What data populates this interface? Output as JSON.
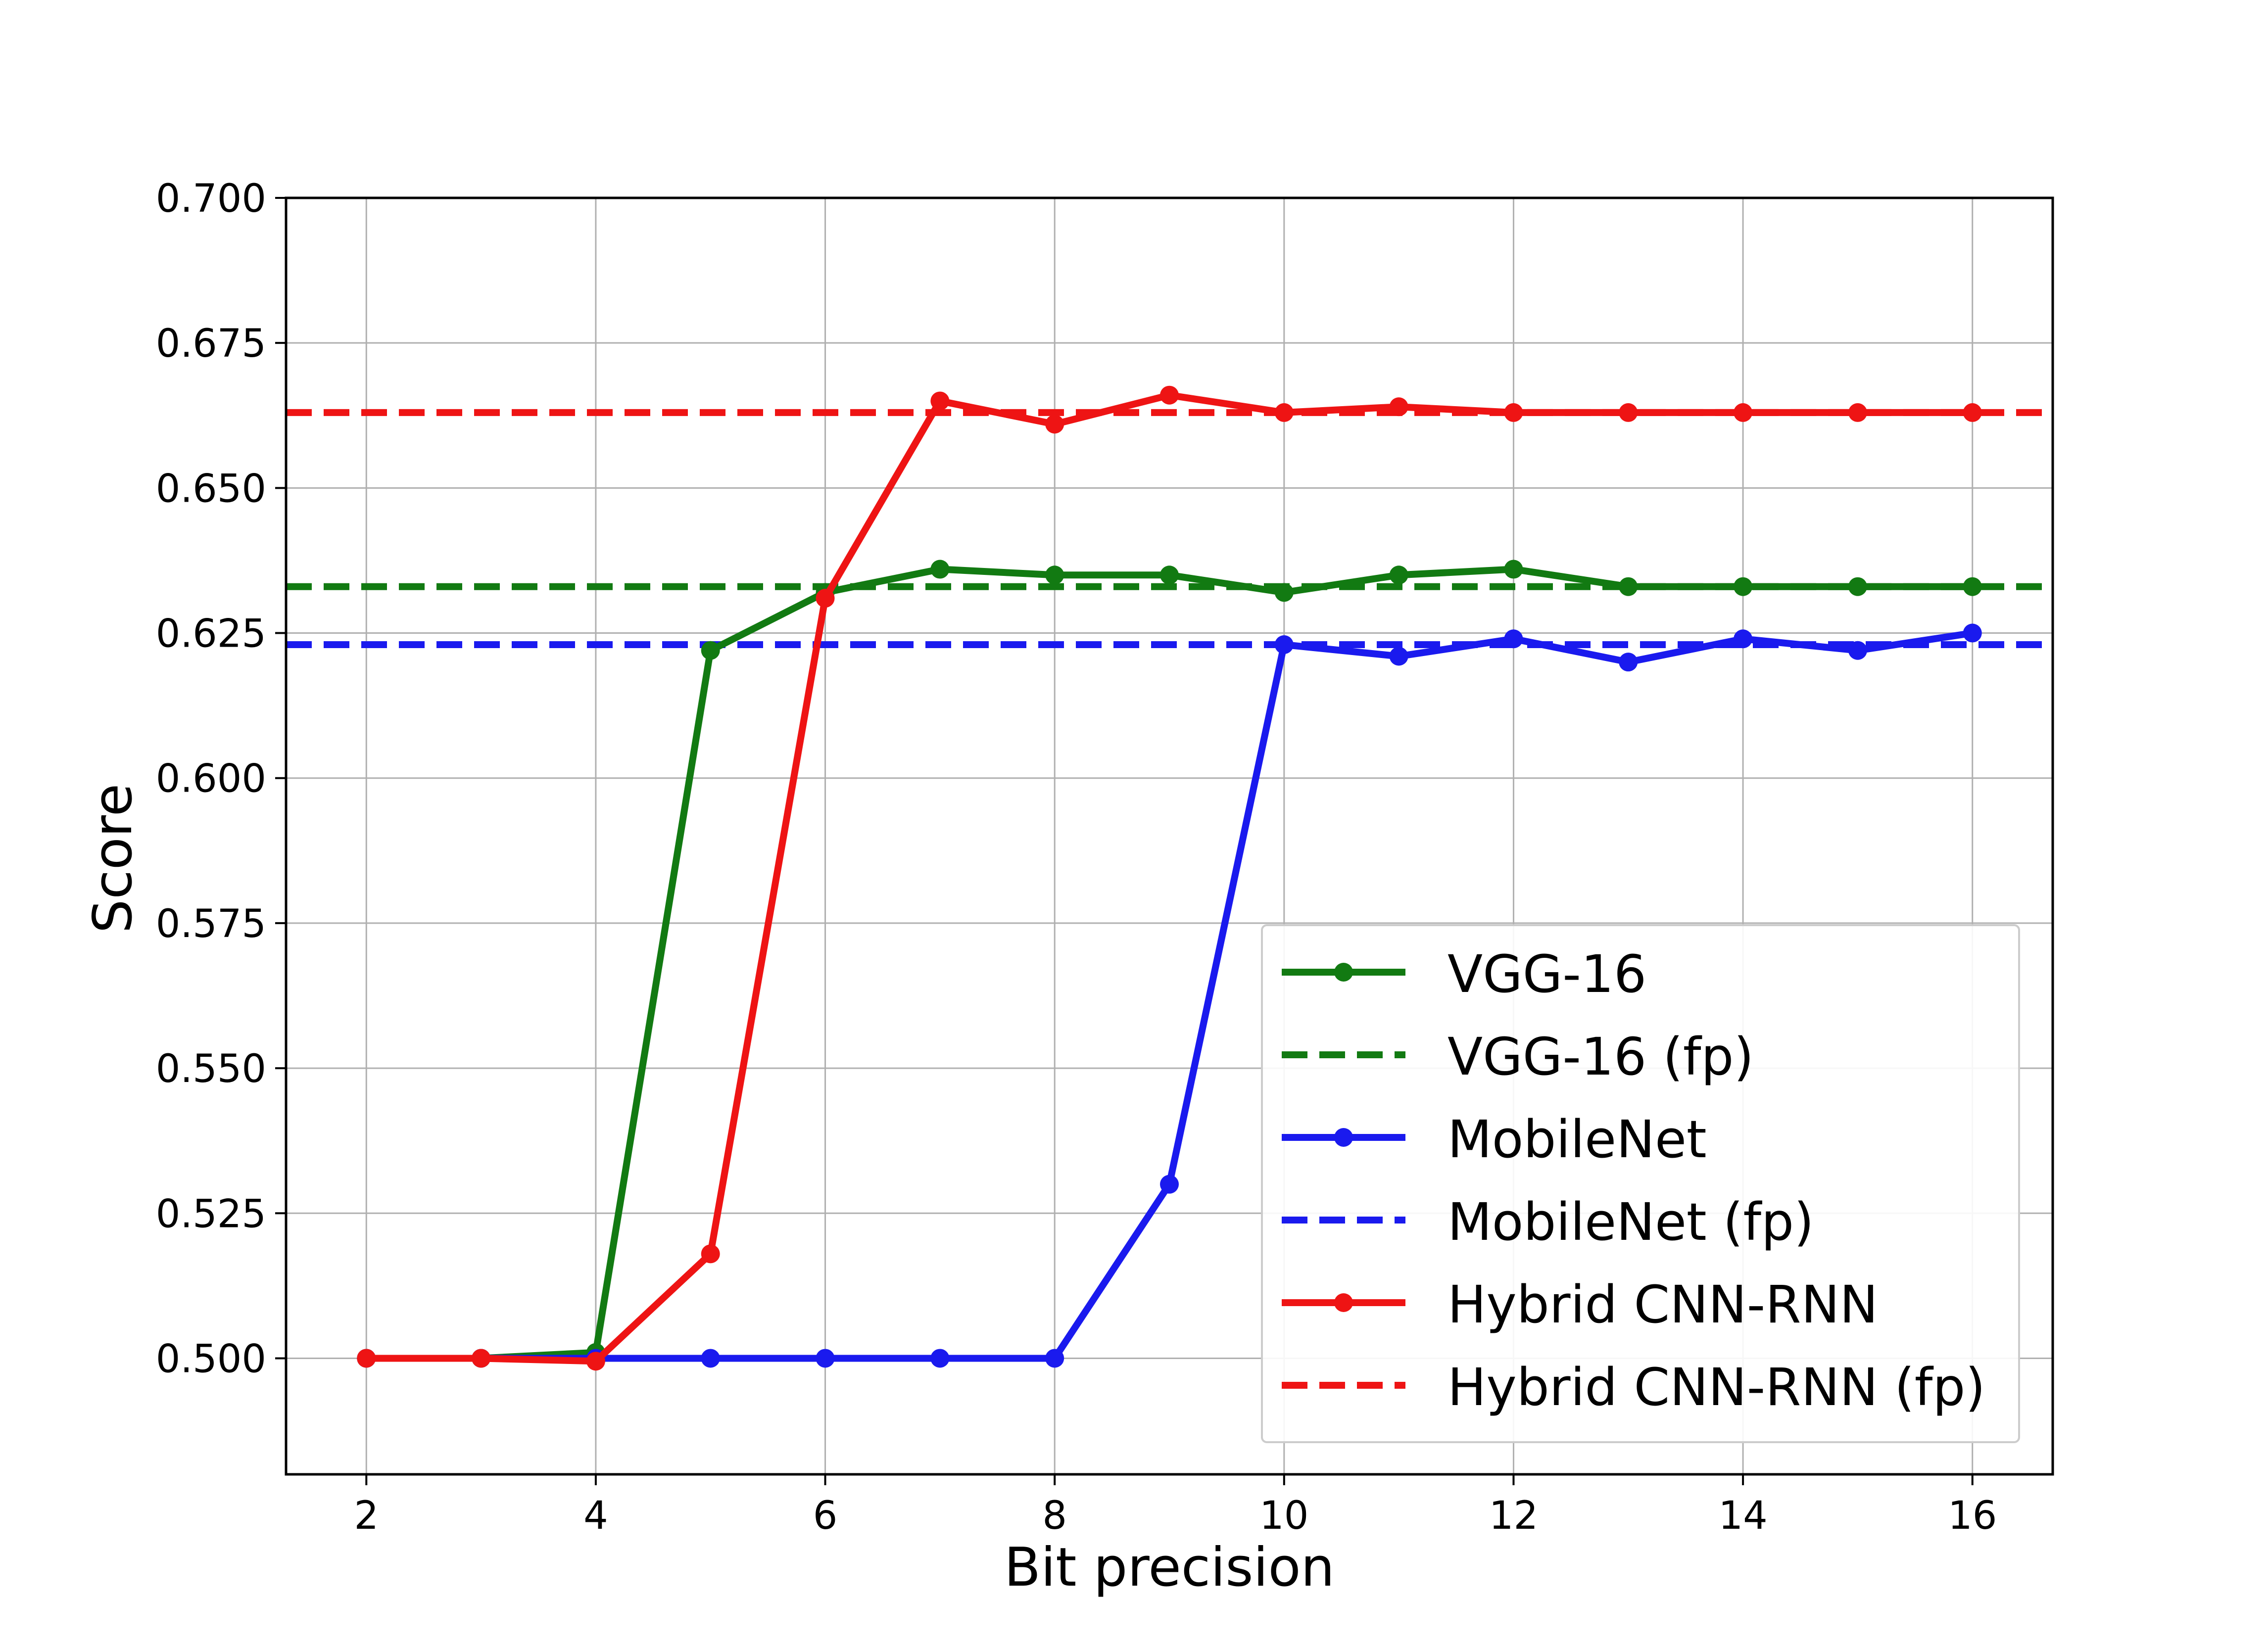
{
  "chart_data": {
    "type": "line",
    "title": "",
    "xlabel": "Bit precision",
    "ylabel": "Score",
    "xlim": [
      1.3,
      16.7
    ],
    "ylim": [
      0.48,
      0.7
    ],
    "xticks": [
      2,
      4,
      6,
      8,
      10,
      12,
      14,
      16
    ],
    "xtick_labels": [
      "2",
      "4",
      "6",
      "8",
      "10",
      "12",
      "14",
      "16"
    ],
    "yticks": [
      0.5,
      0.525,
      0.55,
      0.575,
      0.6,
      0.625,
      0.65,
      0.675,
      0.7
    ],
    "ytick_labels": [
      "0.500",
      "0.525",
      "0.550",
      "0.575",
      "0.600",
      "0.625",
      "0.650",
      "0.675",
      "0.700"
    ],
    "grid": true,
    "legend_position": "lower right",
    "x": [
      2,
      3,
      4,
      5,
      6,
      7,
      8,
      9,
      10,
      11,
      12,
      13,
      14,
      15,
      16
    ],
    "series": [
      {
        "name": "VGG-16",
        "style": "solid",
        "markers": true,
        "color": "#127a12",
        "values": [
          0.5,
          0.5,
          0.501,
          0.622,
          0.632,
          0.636,
          0.635,
          0.635,
          0.632,
          0.635,
          0.636,
          0.633,
          0.633,
          0.633,
          0.633
        ]
      },
      {
        "name": "VGG-16 (fp)",
        "style": "dashed",
        "markers": false,
        "color": "#127a12",
        "constant": 0.633
      },
      {
        "name": "MobileNet",
        "style": "solid",
        "markers": true,
        "color": "#1a1aee",
        "values": [
          0.5,
          0.5,
          0.5,
          0.5,
          0.5,
          0.5,
          0.5,
          0.53,
          0.623,
          0.621,
          0.624,
          0.62,
          0.624,
          0.622,
          0.625
        ]
      },
      {
        "name": "MobileNet (fp)",
        "style": "dashed",
        "markers": false,
        "color": "#1a1aee",
        "constant": 0.623
      },
      {
        "name": "Hybrid CNN-RNN",
        "style": "solid",
        "markers": true,
        "color": "#ee1414",
        "values": [
          0.5,
          0.5,
          0.4995,
          0.518,
          0.631,
          0.665,
          0.661,
          0.666,
          0.663,
          0.664,
          0.663,
          0.663,
          0.663,
          0.663,
          0.663
        ]
      },
      {
        "name": "Hybrid CNN-RNN (fp)",
        "style": "dashed",
        "markers": false,
        "color": "#ee1414",
        "constant": 0.663
      }
    ]
  }
}
